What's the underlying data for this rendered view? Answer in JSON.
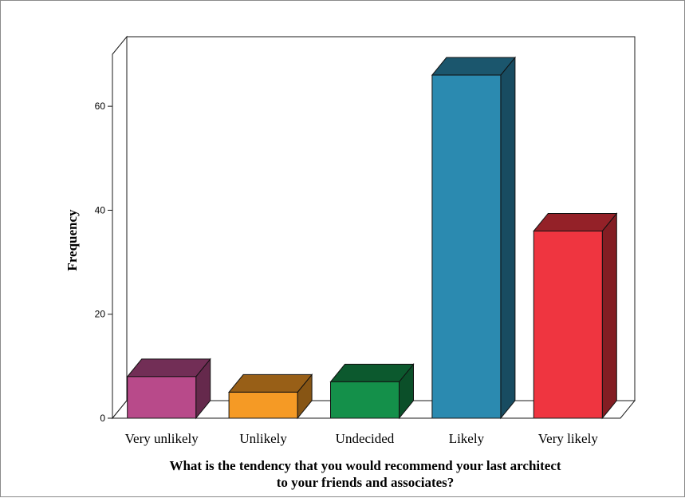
{
  "chart_data": {
    "type": "bar",
    "three_d": true,
    "categories": [
      "Very unlikely",
      "Unlikely",
      "Undecided",
      "Likely",
      "Very likely"
    ],
    "values": [
      8,
      5,
      7,
      66,
      36
    ],
    "colors": [
      "#b84a8a",
      "#f59a25",
      "#14904a",
      "#2b8ab0",
      "#ef3540"
    ],
    "ylabel": "Frequency",
    "xlabel_lines": [
      "What is the tendency that you would recommend your last architect",
      "to your friends and associates?"
    ],
    "yticks": [
      0,
      20,
      40,
      60
    ],
    "ylim": [
      0,
      70
    ],
    "grid": false,
    "legend": "none"
  }
}
